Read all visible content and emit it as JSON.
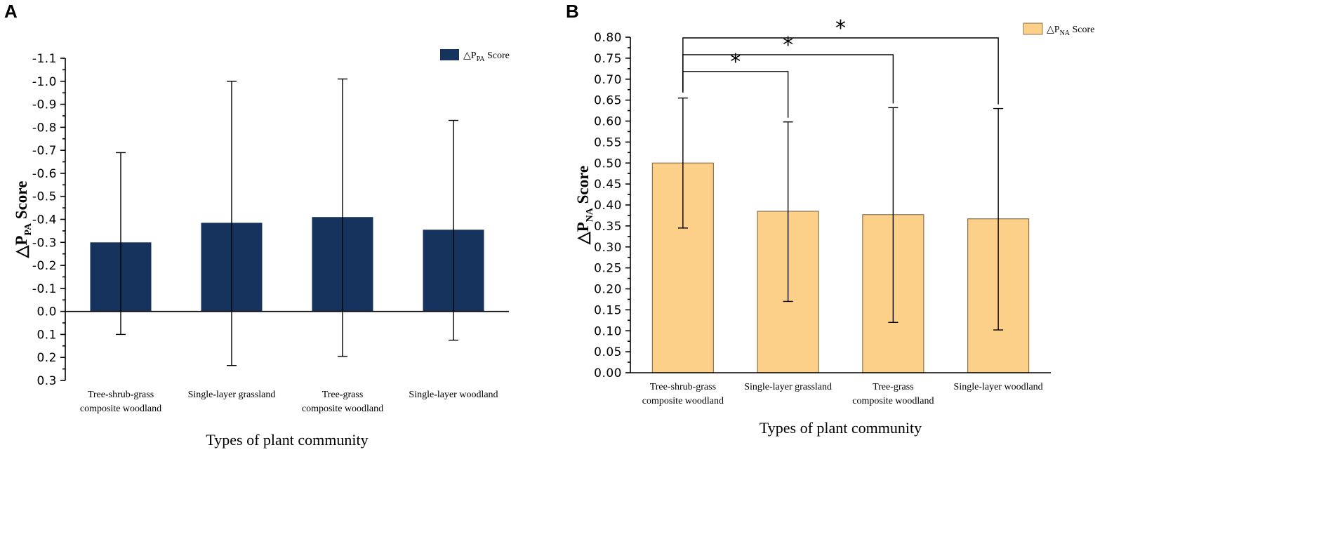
{
  "panels": [
    {
      "letter": "A",
      "chart_data": {
        "type": "bar",
        "title": "",
        "xlabel": "Types of plant community",
        "ylabel": "△P",
        "ylabel_sub": "PA",
        "ylabel_tail": " Score",
        "legend": {
          "symbol": "△P",
          "sub": "PA",
          "tail": " Score",
          "position": "top-right"
        },
        "color": "#16335e",
        "categories": [
          [
            "Tree-shrub-grass",
            "composite woodland"
          ],
          [
            "Single-layer grassland"
          ],
          [
            "Tree-grass",
            "composite woodland"
          ],
          [
            "Single-layer woodland"
          ]
        ],
        "values": [
          -0.3,
          -0.385,
          -0.41,
          -0.355
        ],
        "error_low": [
          0.1,
          0.235,
          0.195,
          0.125
        ],
        "error_high": [
          -0.69,
          -1.0,
          -1.01,
          -0.83
        ],
        "ylim": [
          0.3,
          -1.1
        ],
        "yticks": [
          0.3,
          0.2,
          0.1,
          0.0,
          -0.1,
          -0.2,
          -0.3,
          -0.4,
          -0.5,
          -0.6,
          -0.7,
          -0.8,
          -0.9,
          -1.0,
          -1.1
        ],
        "ytick_labels": [
          "0.3",
          "0.2",
          "0.1",
          "0.0",
          "-0.1",
          "-0.2",
          "-0.3",
          "-0.4",
          "-0.5",
          "-0.6",
          "-0.7",
          "-0.8",
          "-0.9",
          "-1.0",
          "-1.1"
        ],
        "baseline": 0.0
      }
    },
    {
      "letter": "B",
      "chart_data": {
        "type": "bar",
        "title": "",
        "xlabel": "Types of plant community",
        "ylabel": "△P",
        "ylabel_sub": "NA",
        "ylabel_tail": " Score",
        "legend": {
          "symbol": "△P",
          "sub": "NA",
          "tail": " Score",
          "position": "top-right"
        },
        "color": "#fcd088",
        "edge_color": "#8a7350",
        "categories": [
          [
            "Tree-shrub-grass",
            "composite woodland"
          ],
          [
            "Single-layer grassland"
          ],
          [
            "Tree-grass",
            "composite woodland"
          ],
          [
            "Single-layer woodland"
          ]
        ],
        "values": [
          0.5,
          0.385,
          0.377,
          0.367
        ],
        "error_low": [
          0.345,
          0.17,
          0.12,
          0.102
        ],
        "error_high": [
          0.655,
          0.598,
          0.632,
          0.63
        ],
        "ylim": [
          0.0,
          0.8
        ],
        "yticks": [
          0.0,
          0.05,
          0.1,
          0.15,
          0.2,
          0.25,
          0.3,
          0.35,
          0.4,
          0.45,
          0.5,
          0.55,
          0.6,
          0.65,
          0.7,
          0.75,
          0.8
        ],
        "ytick_labels": [
          "0.00",
          "0.05",
          "0.10",
          "0.15",
          "0.20",
          "0.25",
          "0.30",
          "0.35",
          "0.40",
          "0.45",
          "0.50",
          "0.55",
          "0.60",
          "0.65",
          "0.70",
          "0.75",
          "0.80"
        ],
        "baseline": 0.0,
        "significance": [
          {
            "from": 0,
            "to": 1,
            "y": 0.72,
            "label": "*"
          },
          {
            "from": 0,
            "to": 2,
            "y": 0.76,
            "label": "*"
          },
          {
            "from": 0,
            "to": 3,
            "y": 0.8,
            "label": "*"
          }
        ]
      }
    }
  ]
}
